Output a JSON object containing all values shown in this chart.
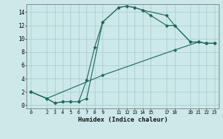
{
  "xlabel": "Humidex (Indice chaleur)",
  "bg_color": "#cce8e8",
  "grid_color": "#aacfcf",
  "line_color": "#1a6b5a",
  "xlim": [
    -0.5,
    23.5
  ],
  "ylim": [
    -0.5,
    15.2
  ],
  "xticks": [
    0,
    2,
    3,
    4,
    5,
    6,
    7,
    8,
    9,
    11,
    12,
    13,
    14,
    15,
    17,
    18,
    20,
    21,
    22,
    23
  ],
  "yticks": [
    0,
    2,
    4,
    6,
    8,
    10,
    12,
    14
  ],
  "line1_x": [
    0,
    2,
    3,
    4,
    5,
    6,
    7,
    9,
    11,
    12,
    13,
    14,
    17,
    18,
    20,
    21,
    22,
    23
  ],
  "line1_y": [
    2.0,
    1.0,
    0.3,
    0.5,
    0.5,
    0.5,
    1.0,
    12.5,
    14.7,
    14.9,
    14.7,
    14.3,
    13.5,
    12.0,
    9.5,
    9.5,
    9.3,
    9.3
  ],
  "line2_x": [
    0,
    2,
    3,
    4,
    5,
    6,
    7,
    8,
    9,
    11,
    12,
    13,
    14,
    15,
    17,
    18,
    20,
    21,
    22,
    23
  ],
  "line2_y": [
    2.0,
    1.0,
    0.3,
    0.5,
    0.5,
    0.5,
    3.8,
    8.7,
    12.5,
    14.7,
    14.9,
    14.7,
    14.3,
    13.5,
    12.0,
    12.0,
    9.5,
    9.5,
    9.3,
    9.3
  ],
  "line3_x": [
    0,
    2,
    9,
    18,
    21,
    22,
    23
  ],
  "line3_y": [
    2.0,
    1.0,
    4.5,
    8.3,
    9.5,
    9.3,
    9.3
  ]
}
